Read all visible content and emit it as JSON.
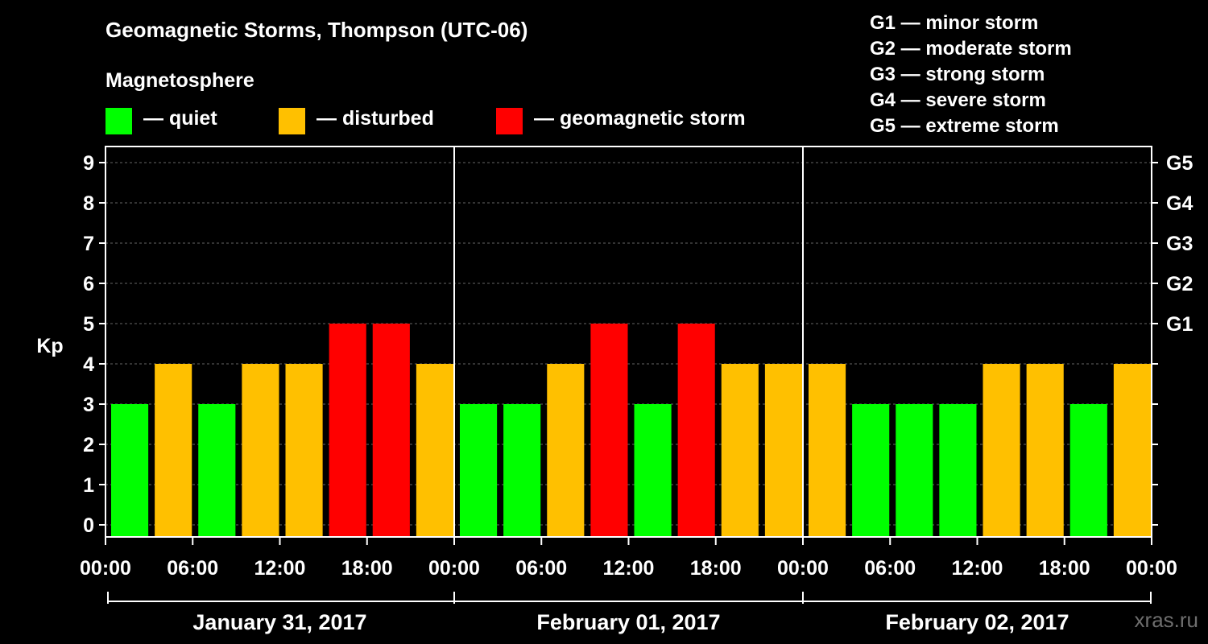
{
  "title": "Geomagnetic Storms, Thompson (UTC-06)",
  "magnetosphere": {
    "title": "Magnetosphere",
    "items": [
      {
        "label": "— quiet",
        "color": "#00ff00"
      },
      {
        "label": "— disturbed",
        "color": "#ffc000"
      },
      {
        "label": "— geomagnetic storm",
        "color": "#ff0000"
      }
    ]
  },
  "storm_levels": [
    "G1 — minor storm",
    "G2 — moderate storm",
    "G3 — strong storm",
    "G4 — severe storm",
    "G5 — extreme storm"
  ],
  "watermark": "xras.ru",
  "chart_data": {
    "type": "bar",
    "ylabel": "Kp",
    "ylim": [
      0,
      9
    ],
    "yticks": [
      "0",
      "1",
      "2",
      "3",
      "4",
      "5",
      "6",
      "7",
      "8",
      "9"
    ],
    "right_ticks": [
      {
        "label": "G1",
        "kp": 5
      },
      {
        "label": "G2",
        "kp": 6
      },
      {
        "label": "G3",
        "kp": 7
      },
      {
        "label": "G4",
        "kp": 8
      },
      {
        "label": "G5",
        "kp": 9
      }
    ],
    "xtick_labels": [
      "00:00",
      "06:00",
      "12:00",
      "18:00",
      "00:00",
      "06:00",
      "12:00",
      "18:00",
      "00:00",
      "06:00",
      "12:00",
      "18:00",
      "00:00"
    ],
    "days": [
      "January 31, 2017",
      "February 01, 2017",
      "February 02, 2017"
    ],
    "values": [
      3,
      4,
      3,
      4,
      4,
      5,
      5,
      4,
      3,
      3,
      4,
      5,
      3,
      5,
      4,
      4,
      4,
      3,
      3,
      3,
      4,
      4,
      3,
      4
    ],
    "colors": {
      "quiet": "#00ff00",
      "disturbed": "#ffc000",
      "storm": "#ff0000"
    },
    "grid": true
  }
}
